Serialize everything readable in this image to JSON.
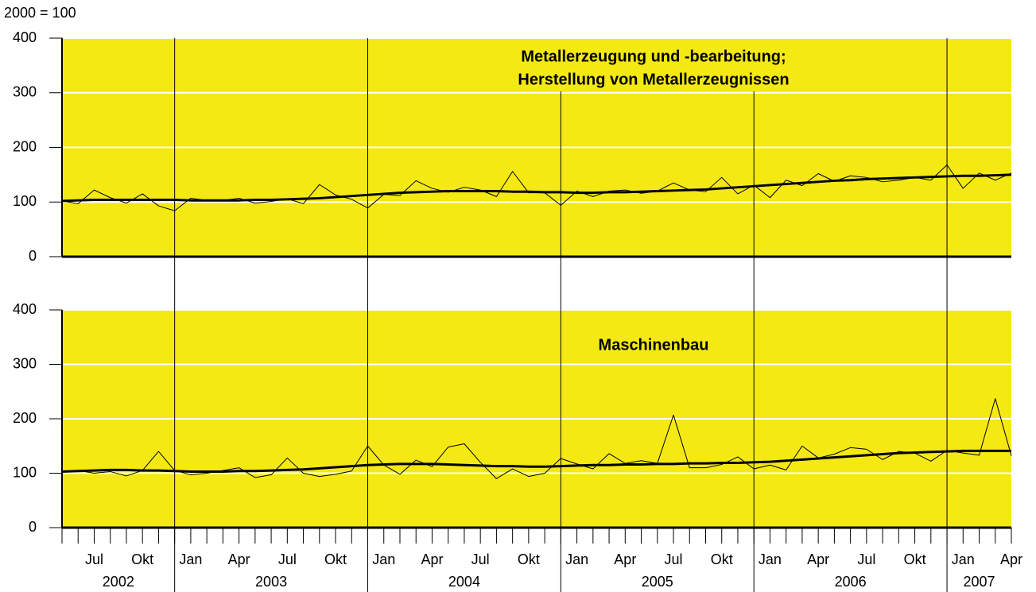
{
  "unit_label": "2000 = 100",
  "chart_data": [
    {
      "type": "line",
      "title": [
        "Metallerzeugung und -bearbeitung;",
        "Herstellung von Metallerzeugnissen"
      ],
      "ylim": [
        0,
        400
      ],
      "yticks": [
        0,
        100,
        200,
        300,
        400
      ],
      "grid": true,
      "background": "#f4e912",
      "series": [
        {
          "color": "#000000",
          "width": 1,
          "values": [
            102,
            97,
            122,
            108,
            98,
            115,
            93,
            84,
            107,
            103,
            103,
            107,
            98,
            101,
            106,
            97,
            132,
            113,
            105,
            89,
            114,
            112,
            139,
            125,
            118,
            127,
            122,
            110,
            156,
            117,
            117,
            94,
            120,
            110,
            120,
            122,
            116,
            120,
            135,
            122,
            119,
            145,
            115,
            131,
            108,
            140,
            130,
            152,
            138,
            148,
            145,
            137,
            140,
            145,
            140,
            168,
            125,
            153,
            140,
            153
          ]
        },
        {
          "color": "#000000",
          "width": 3,
          "values": [
            102,
            103,
            104,
            104,
            104,
            104,
            104,
            104,
            103,
            103,
            103,
            103,
            104,
            104,
            105,
            106,
            107,
            109,
            111,
            113,
            115,
            117,
            118,
            119,
            120,
            120,
            120,
            120,
            119,
            119,
            118,
            118,
            117,
            117,
            118,
            118,
            119,
            120,
            121,
            122,
            123,
            125,
            127,
            129,
            131,
            133,
            135,
            137,
            139,
            140,
            142,
            143,
            144,
            145,
            146,
            147,
            148,
            148,
            149,
            150
          ]
        }
      ]
    },
    {
      "type": "line",
      "title": [
        "Maschinenbau"
      ],
      "ylim": [
        0,
        400
      ],
      "yticks": [
        0,
        100,
        200,
        300,
        400
      ],
      "grid": true,
      "background": "#f4e912",
      "categories": [
        null,
        null,
        "Jul",
        null,
        null,
        "Okt",
        null,
        null,
        "Jan",
        null,
        null,
        "Apr",
        null,
        null,
        "Jul",
        null,
        null,
        "Okt",
        null,
        null,
        "Jan",
        null,
        null,
        "Apr",
        null,
        null,
        "Jul",
        null,
        null,
        "Okt",
        null,
        null,
        "Jan",
        null,
        null,
        "Apr",
        null,
        null,
        "Jul",
        null,
        null,
        "Okt",
        null,
        null,
        "Jan",
        null,
        null,
        "Apr",
        null,
        null,
        "Jul",
        null,
        null,
        "Okt",
        null,
        null,
        "Jan",
        null,
        null,
        "Apr"
      ],
      "years": [
        "2002",
        "2003",
        "2004",
        "2005",
        "2006",
        "2007"
      ],
      "series": [
        {
          "color": "#000000",
          "width": 1,
          "values": [
            103,
            105,
            100,
            103,
            95,
            105,
            140,
            105,
            97,
            100,
            105,
            110,
            92,
            97,
            128,
            100,
            94,
            98,
            104,
            150,
            115,
            98,
            124,
            112,
            148,
            154,
            120,
            90,
            108,
            94,
            100,
            127,
            117,
            108,
            136,
            118,
            123,
            118,
            207,
            110,
            110,
            116,
            130,
            108,
            115,
            106,
            150,
            128,
            135,
            147,
            144,
            125,
            140,
            137,
            122,
            142,
            137,
            133,
            237,
            132
          ]
        },
        {
          "color": "#000000",
          "width": 3,
          "values": [
            103,
            104,
            105,
            106,
            106,
            105,
            105,
            104,
            103,
            103,
            103,
            104,
            104,
            105,
            106,
            107,
            109,
            111,
            113,
            115,
            116,
            117,
            117,
            117,
            116,
            115,
            114,
            113,
            113,
            112,
            112,
            113,
            114,
            115,
            115,
            116,
            116,
            117,
            117,
            118,
            118,
            119,
            119,
            120,
            121,
            123,
            125,
            127,
            129,
            131,
            133,
            135,
            137,
            138,
            139,
            140,
            141,
            141,
            141,
            141
          ]
        }
      ]
    }
  ]
}
